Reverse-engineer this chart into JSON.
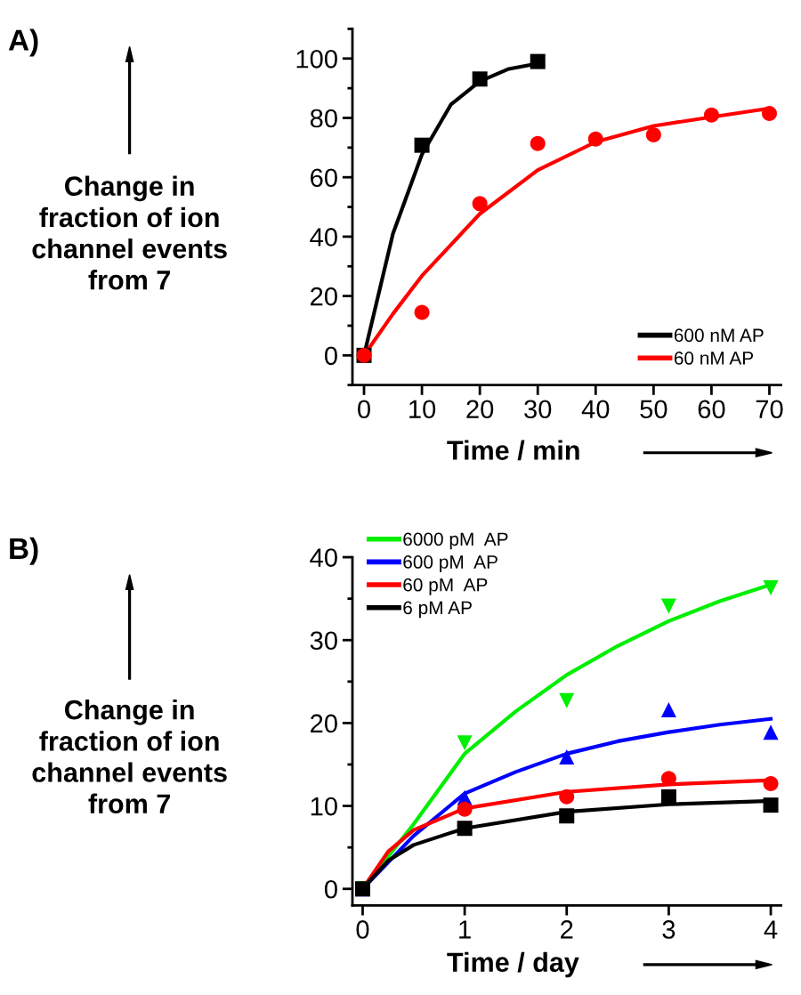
{
  "chart_data": [
    {
      "type": "line",
      "xlabel": "Time / min",
      "ylabel": "Change in\nfraction of ion\nchannel events\nfrom 7",
      "annotations": [
        "A)"
      ],
      "xlim": [
        -2,
        72
      ],
      "xticks": [
        0,
        10,
        20,
        30,
        40,
        50,
        60,
        70
      ],
      "ylim": [
        -10,
        110
      ],
      "yticks": [
        0,
        20,
        40,
        60,
        80,
        100
      ],
      "legend": "bottom right",
      "grid": false,
      "series": [
        {
          "type": "scatter",
          "marker": "square",
          "color": "#000000",
          "x": [
            0,
            10,
            20,
            30
          ],
          "values": [
            0,
            70.8,
            93.1,
            99
          ]
        },
        {
          "type": "scatter",
          "marker": "circle",
          "color": "#ff0000",
          "x": [
            0,
            10,
            20,
            30,
            40,
            50,
            60,
            70
          ],
          "values": [
            0,
            14.5,
            51.1,
            71.4,
            72.9,
            74.3,
            81,
            81.5
          ]
        },
        {
          "name": "600 nM AP",
          "color": "#000000",
          "x": [
            0,
            5,
            10,
            15,
            20,
            25,
            30
          ],
          "values": [
            0,
            41,
            67.7,
            84.5,
            92.3,
            96.5,
            98.3
          ]
        },
        {
          "name": "60 nM AP",
          "color": "#ff0000",
          "x": [
            0,
            5,
            10,
            20,
            30,
            40,
            50,
            60,
            70
          ],
          "values": [
            0,
            14,
            26.8,
            47.7,
            62.4,
            71.9,
            77.3,
            80.3,
            83.2
          ]
        }
      ]
    },
    {
      "type": "line",
      "xlabel": "Time / day",
      "ylabel": "Change in\nfraction of ion\nchannel events\nfrom 7",
      "annotations": [
        "B)"
      ],
      "xlim": [
        -0.1,
        4.1
      ],
      "xticks": [
        0,
        1,
        2,
        3,
        4
      ],
      "ylim": [
        -2,
        40
      ],
      "yticks": [
        0,
        10,
        20,
        30,
        40
      ],
      "legend": "top left",
      "grid": false,
      "series": [
        {
          "type": "scatter",
          "marker": "triangle_down",
          "color": "#00ee00",
          "x": [
            0,
            1,
            2,
            3,
            4
          ],
          "values": [
            0,
            17.6,
            22.7,
            34.1,
            36.3
          ]
        },
        {
          "type": "scatter",
          "marker": "triangle",
          "color": "#0000ff",
          "x": [
            0,
            1,
            2,
            3,
            4
          ],
          "values": [
            0,
            11,
            15.9,
            21.6,
            18.9
          ]
        },
        {
          "type": "scatter",
          "marker": "circle",
          "color": "#ff0000",
          "x": [
            1,
            2,
            3,
            4
          ],
          "values": [
            9.6,
            11.1,
            13.3,
            12.7
          ]
        },
        {
          "type": "scatter",
          "marker": "square",
          "color": "#000000",
          "x": [
            0,
            1,
            2,
            3,
            4
          ],
          "values": [
            0,
            7.3,
            8.8,
            11.1,
            10.1
          ]
        },
        {
          "name": "6000 pM  AP",
          "color": "#00ee00",
          "x": [
            0,
            0.5,
            1,
            1.5,
            2,
            2.5,
            3,
            3.5,
            4
          ],
          "values": [
            0,
            7.8,
            16.3,
            21.4,
            25.8,
            29.3,
            32.3,
            34.7,
            36.7
          ]
        },
        {
          "name": "600 pM  AP",
          "color": "#0000ff",
          "x": [
            0,
            0.5,
            1,
            1.5,
            2,
            2.5,
            3,
            3.5,
            4
          ],
          "values": [
            0,
            6.4,
            11.5,
            14.1,
            16.3,
            17.8,
            18.9,
            19.8,
            20.5
          ]
        },
        {
          "name": "60 pM  AP",
          "color": "#ff0000",
          "x": [
            0,
            0.25,
            0.5,
            1,
            2,
            3,
            4
          ],
          "values": [
            0,
            4.5,
            7.1,
            9.7,
            11.7,
            12.6,
            13.1
          ]
        },
        {
          "name": "6 pM AP",
          "color": "#000000",
          "x": [
            0,
            0.25,
            0.5,
            1,
            2,
            3,
            4
          ],
          "values": [
            0,
            3.4,
            5.3,
            7.3,
            9.3,
            10.2,
            10.6
          ]
        }
      ]
    }
  ]
}
